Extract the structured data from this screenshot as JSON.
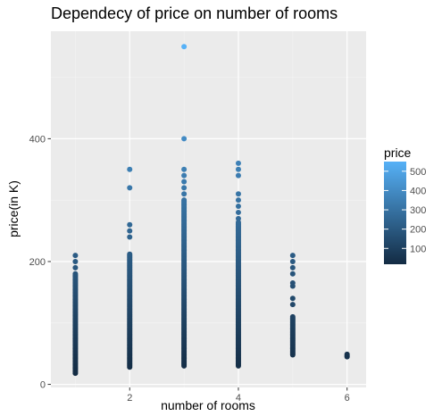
{
  "chart_data": {
    "type": "scatter",
    "title": "Dependecy of price on number of rooms",
    "xlabel": "number of rooms",
    "ylabel": "price(in K)",
    "xlim": [
      0.55,
      6.35
    ],
    "ylim": [
      -5,
      575
    ],
    "x_ticks": [
      2,
      4,
      6
    ],
    "y_ticks": [
      0,
      200,
      400
    ],
    "grid": true,
    "legend": {
      "title": "price",
      "placement": "right",
      "ticks": [
        100,
        200,
        300,
        400,
        500
      ],
      "range": [
        18,
        550
      ],
      "color_low": "#132b43",
      "color_high": "#56b1f7"
    },
    "groups": [
      {
        "x": 1,
        "min": 18,
        "max": 180,
        "extra": [
          190,
          200,
          210
        ]
      },
      {
        "x": 2,
        "min": 28,
        "max": 212,
        "extra": [
          240,
          250,
          260,
          320,
          350
        ]
      },
      {
        "x": 3,
        "min": 30,
        "max": 300,
        "extra": [
          310,
          320,
          330,
          340,
          350,
          400,
          550
        ]
      },
      {
        "x": 4,
        "min": 30,
        "max": 265,
        "extra": [
          270,
          280,
          290,
          300,
          310,
          340,
          350,
          360
        ]
      },
      {
        "x": 5,
        "min": 48,
        "max": 110,
        "extra": [
          130,
          140,
          160,
          165,
          180,
          190,
          200,
          210
        ]
      },
      {
        "x": 6,
        "min": 45,
        "max": 50,
        "extra": []
      }
    ]
  }
}
